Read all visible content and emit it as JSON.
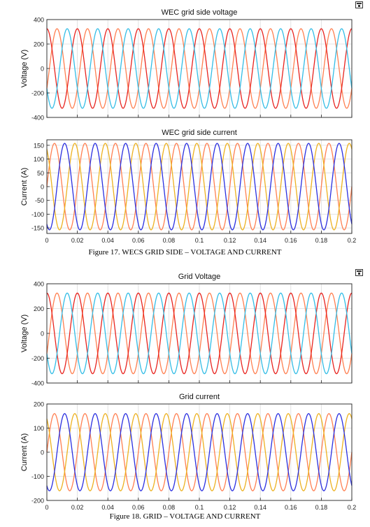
{
  "figures": [
    {
      "caption": "Figure 17. WECS GRID SIDE – VOLTAGE AND CURRENT",
      "dock_icon": "undock-icon"
    },
    {
      "caption": "Figure 18. GRID – VOLTAGE AND CURRENT",
      "dock_icon": "undock-icon"
    }
  ],
  "chart_data": [
    {
      "type": "line",
      "title": "WEC grid side voltage",
      "xlabel": "",
      "ylabel": "Voltage (V)",
      "xlim": [
        0,
        0.2
      ],
      "ylim": [
        -400,
        400
      ],
      "xticks": [],
      "yticks": [
        400,
        200,
        0,
        -200,
        -400
      ],
      "grid": true,
      "waveform": "three-phase sinusoid",
      "frequency_hz": 50,
      "series": [
        {
          "amplitude": 325,
          "phase_deg": -30,
          "color": "#FF7F50"
        },
        {
          "amplitude": 325,
          "phase_deg": 90,
          "color": "#E8231E"
        },
        {
          "amplitude": 325,
          "phase_deg": 210,
          "color": "#33BDE6"
        }
      ]
    },
    {
      "type": "line",
      "title": "WEC grid side current",
      "xlabel": "",
      "ylabel": "Current (A)",
      "xlim": [
        0,
        0.2
      ],
      "ylim": [
        -170,
        170
      ],
      "xticks": [
        "0",
        "0.02",
        "0.04",
        "0.06",
        "0.08",
        "0.1",
        "0.12",
        "0.14",
        "0.16",
        "0.18",
        "0.2"
      ],
      "yticks": [
        150,
        100,
        50,
        0,
        -50,
        -100,
        -150
      ],
      "grid": true,
      "waveform": "three-phase sinusoid",
      "frequency_hz": 50,
      "series": [
        {
          "amplitude": 157,
          "phase_deg": 0,
          "color": "#FF7F50"
        },
        {
          "amplitude": 157,
          "phase_deg": 120,
          "color": "#EDB120"
        },
        {
          "amplitude": 157,
          "phase_deg": 240,
          "color": "#2A2FE0"
        }
      ]
    },
    {
      "type": "line",
      "title": "Grid Voltage",
      "xlabel": "",
      "ylabel": "Voltage (V)",
      "xlim": [
        0,
        0.2
      ],
      "ylim": [
        -400,
        400
      ],
      "xticks": [],
      "yticks": [
        400,
        200,
        0,
        -200,
        -400
      ],
      "grid": true,
      "waveform": "three-phase sinusoid",
      "frequency_hz": 50,
      "series": [
        {
          "amplitude": 325,
          "phase_deg": -30,
          "color": "#FF7F50"
        },
        {
          "amplitude": 325,
          "phase_deg": 90,
          "color": "#E8231E"
        },
        {
          "amplitude": 325,
          "phase_deg": 210,
          "color": "#33BDE6"
        }
      ]
    },
    {
      "type": "line",
      "title": "Grid current",
      "xlabel": "",
      "ylabel": "Current (A)",
      "xlim": [
        0,
        0.2
      ],
      "ylim": [
        -200,
        200
      ],
      "xticks": [
        "0",
        "0.02",
        "0.04",
        "0.06",
        "0.08",
        "0.1",
        "0.12",
        "0.14",
        "0.16",
        "0.18",
        "0.2"
      ],
      "yticks": [
        200,
        100,
        0,
        -100,
        -200
      ],
      "grid": true,
      "waveform": "three-phase sinusoid",
      "frequency_hz": 50,
      "series": [
        {
          "amplitude": 160,
          "phase_deg": 0,
          "color": "#FF7F50"
        },
        {
          "amplitude": 160,
          "phase_deg": 120,
          "color": "#EDB120"
        },
        {
          "amplitude": 160,
          "phase_deg": 240,
          "color": "#2A2FE0"
        }
      ]
    }
  ]
}
